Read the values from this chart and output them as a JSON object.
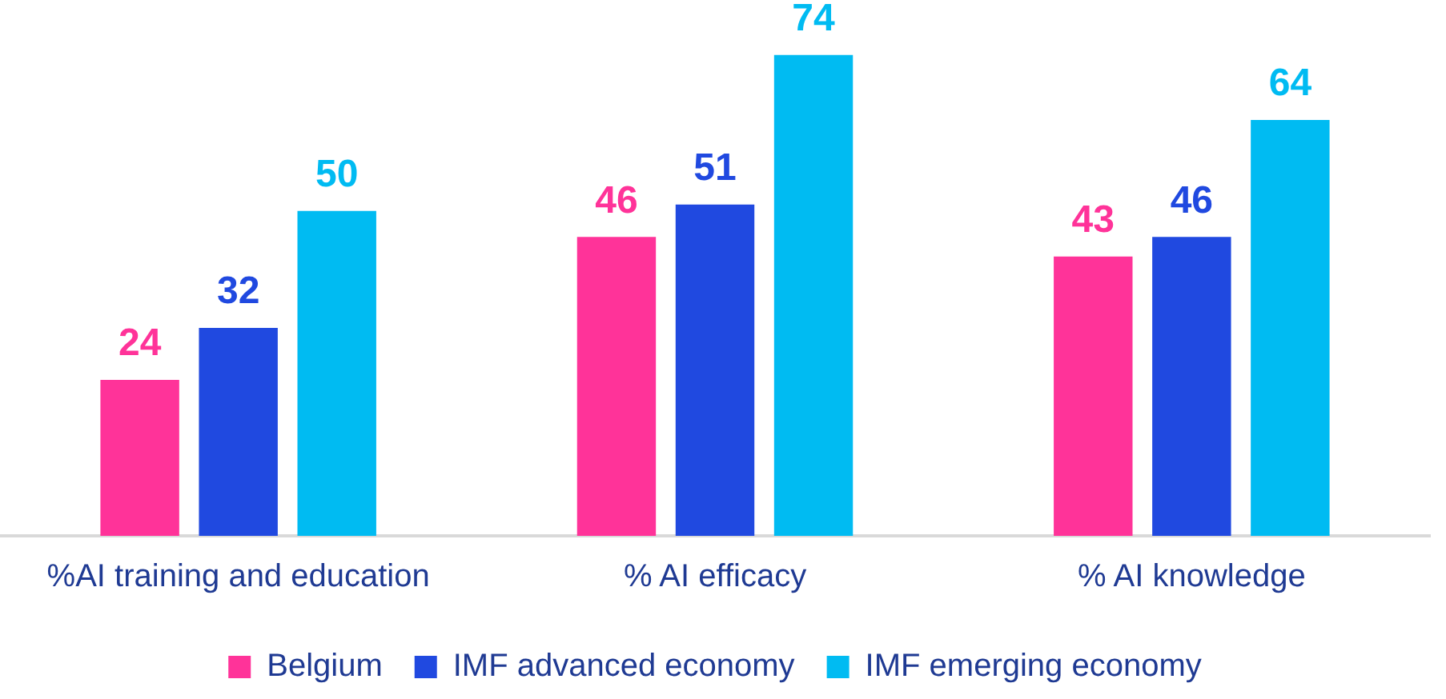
{
  "chart_data": {
    "type": "bar",
    "categories": [
      "%AI training and education",
      "% AI efficacy",
      "% AI knowledge"
    ],
    "series": [
      {
        "name": "Belgium",
        "color": "#ff3399",
        "values": [
          24,
          46,
          43
        ]
      },
      {
        "name": "IMF advanced economy",
        "color": "#2049e0",
        "values": [
          32,
          51,
          46
        ]
      },
      {
        "name": "IMF emerging economy",
        "color": "#00bbf2",
        "values": [
          50,
          74,
          64
        ]
      }
    ],
    "data_labels": true,
    "grid": false,
    "legend": "bottom",
    "tick_labels": "x"
  }
}
